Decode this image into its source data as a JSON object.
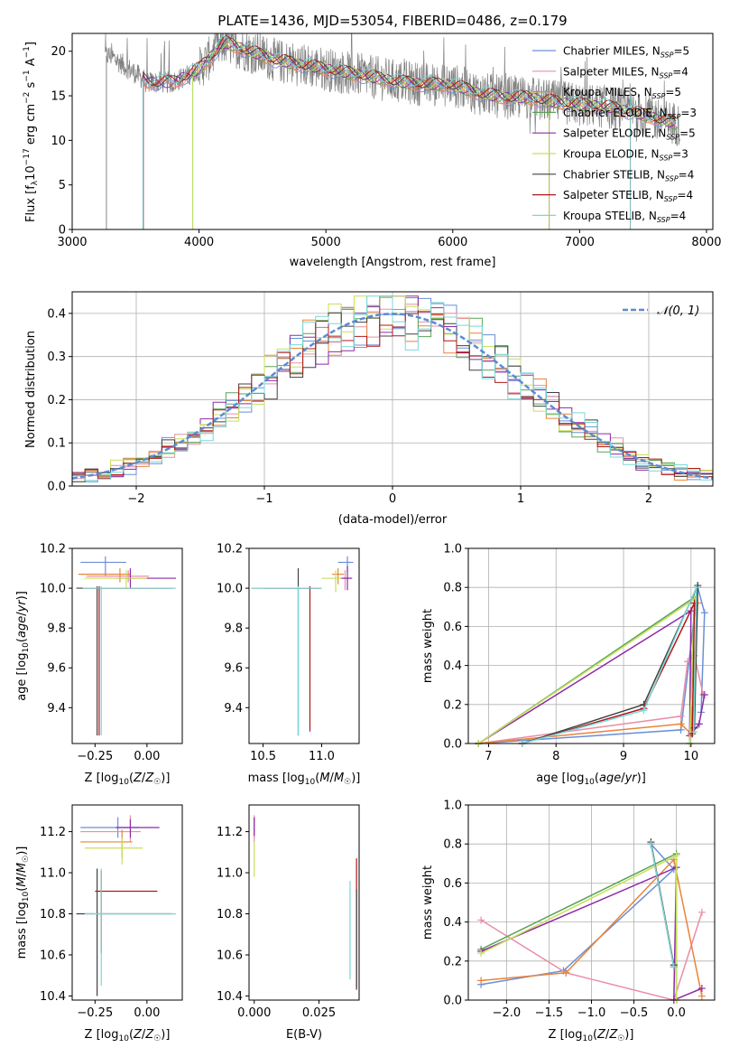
{
  "title": "PLATE=1436, MJD=53054, FIBERID=0486, z=0.179",
  "chart_data": [
    {
      "id": "spectrum",
      "type": "line",
      "xlabel": "wavelength [Angstrom, rest frame]",
      "ylabel": "Flux [f_λ10^-17 erg cm^-2 s^-1 A^-1]",
      "xlim": [
        3000,
        8050
      ],
      "ylim": [
        0,
        22
      ],
      "xticks": [
        "3000",
        "4000",
        "5000",
        "6000",
        "7000",
        "8000"
      ],
      "yticks": [
        "0",
        "5",
        "10",
        "15",
        "20"
      ],
      "legend": {
        "placement": "right",
        "entries": [
          {
            "label": "Chabrier MILES, N_SSP=5",
            "color": "#6a8fd6"
          },
          {
            "label": "Salpeter MILES, N_SSP=4",
            "color": "#e88fa8"
          },
          {
            "label": "Kroupa MILES, N_SSP=5",
            "color": "#e8843a"
          },
          {
            "label": "Chabrier ELODIE, N_SSP=3",
            "color": "#5aa35a"
          },
          {
            "label": "Salpeter ELODIE, N_SSP=5",
            "color": "#8e2aa8"
          },
          {
            "label": "Kroupa ELODIE, N_SSP=3",
            "color": "#c8e05a"
          },
          {
            "label": "Chabrier STELIB, N_SSP=4",
            "color": "#404040"
          },
          {
            "label": "Salpeter STELIB, N_SSP=4",
            "color": "#b01818"
          },
          {
            "label": "Kroupa STELIB, N_SSP=4",
            "color": "#78d8d8"
          }
        ]
      },
      "data_trend": {
        "x": [
          3300,
          3600,
          3800,
          4000,
          4200,
          4400,
          4600,
          4800,
          5000,
          5200,
          5400,
          5600,
          5800,
          6000,
          6200,
          6400,
          6600,
          6800,
          7000,
          7200,
          7400,
          7600,
          7780
        ],
        "y": [
          19.5,
          16.5,
          16.5,
          18,
          21,
          20,
          19,
          18.5,
          18,
          17.5,
          17,
          16.5,
          16.3,
          16.2,
          15.3,
          14.8,
          14.8,
          14.3,
          14,
          13.8,
          13.2,
          12.5,
          11.8
        ]
      }
    },
    {
      "id": "residuals",
      "type": "line",
      "xlabel": "(data-model)/error",
      "ylabel": "Normed distribution",
      "xlim": [
        -2.5,
        2.5
      ],
      "ylim": [
        0,
        0.45
      ],
      "xticks": [
        "−2",
        "−1",
        "0",
        "1",
        "2"
      ],
      "yticks": [
        "0.0",
        "0.1",
        "0.2",
        "0.3",
        "0.4"
      ],
      "legend": {
        "placement": "top-right",
        "label": "𝒩(0, 1)",
        "color": "#5b8bd6"
      }
    },
    {
      "id": "age-vs-Z",
      "type": "scatter",
      "xlabel": "Z [log₁₀(Z/Z☉)]",
      "ylabel": "age  [log₁₀(age/yr)]",
      "xlim": [
        -0.36,
        0.17
      ],
      "ylim": [
        9.22,
        10.2
      ],
      "xticks": [
        "−0.25",
        "0.00"
      ],
      "yticks": [
        "9.4",
        "9.6",
        "9.8",
        "10.0",
        "10.2"
      ],
      "points": [
        {
          "color": "#6a8fd6",
          "x": -0.2,
          "y": 10.13,
          "xerr": [
            0.12,
            0.1
          ],
          "yerr": [
            0.07,
            0.03
          ]
        },
        {
          "color": "#e88fa8",
          "x": -0.09,
          "y": 10.06,
          "xerr": [
            0.2,
            0.1
          ],
          "yerr": [
            0.03,
            0.03
          ]
        },
        {
          "color": "#e8843a",
          "x": -0.13,
          "y": 10.07,
          "xerr": [
            0.2,
            0.05
          ],
          "yerr": [
            0.04,
            0.03
          ]
        },
        {
          "color": "#8e2aa8",
          "x": -0.08,
          "y": 10.05,
          "xerr": [
            0.07,
            0.22
          ],
          "yerr": [
            0.05,
            0.05
          ]
        },
        {
          "color": "#c8e05a",
          "x": -0.1,
          "y": 10.05,
          "xerr": [
            0.2,
            0.1
          ],
          "yerr": [
            0.05,
            0.04
          ]
        },
        {
          "color": "#404040",
          "x": -0.24,
          "y": 10.0,
          "xerr": [
            0.1,
            0.36
          ],
          "yerr": [
            0.74,
            0.01
          ]
        },
        {
          "color": "#b01818",
          "x": -0.23,
          "y": 10.0,
          "xerr": [
            0.08,
            0.36
          ],
          "yerr": [
            0.74,
            0.01
          ]
        },
        {
          "color": "#78d8d8",
          "x": -0.22,
          "y": 10.0,
          "xerr": [
            0.09,
            0.36
          ],
          "yerr": [
            0.74,
            0.01
          ]
        }
      ]
    },
    {
      "id": "age-vs-mass",
      "type": "scatter",
      "xlabel": "mass [log₁₀(M/M☉)]",
      "xlim": [
        10.38,
        11.32
      ],
      "ylim": [
        9.22,
        10.2
      ],
      "xticks": [
        "10.5",
        "11.0"
      ],
      "yticks": [
        "9.4",
        "9.6",
        "9.8",
        "10.0",
        "10.2"
      ],
      "points": [
        {
          "color": "#6a8fd6",
          "x": 11.22,
          "y": 10.13,
          "xerr": [
            0.08,
            0.05
          ],
          "yerr": [
            0.05,
            0.03
          ]
        },
        {
          "color": "#e88fa8",
          "x": 11.2,
          "y": 10.05,
          "xerr": [
            0.05,
            0.05
          ],
          "yerr": [
            0.06,
            0.04
          ]
        },
        {
          "color": "#e8843a",
          "x": 11.14,
          "y": 10.07,
          "xerr": [
            0.05,
            0.05
          ],
          "yerr": [
            0.05,
            0.03
          ]
        },
        {
          "color": "#8e2aa8",
          "x": 11.22,
          "y": 10.05,
          "xerr": [
            0.05,
            0.04
          ],
          "yerr": [
            0.06,
            0.06
          ]
        },
        {
          "color": "#c8e05a",
          "x": 11.12,
          "y": 10.05,
          "xerr": [
            0.12,
            0.05
          ],
          "yerr": [
            0.07,
            0.04
          ]
        },
        {
          "color": "#404040",
          "x": 10.8,
          "y": 10.0,
          "xerr": [
            0.4,
            0.2
          ],
          "yerr": [
            0.74,
            0.1
          ]
        },
        {
          "color": "#b01818",
          "x": 10.9,
          "y": 10.0,
          "xerr": [
            0.4,
            0.1
          ],
          "yerr": [
            0.72,
            0.01
          ]
        },
        {
          "color": "#78d8d8",
          "x": 10.8,
          "y": 10.0,
          "xerr": [
            0.4,
            0.2
          ],
          "yerr": [
            0.74,
            0.01
          ]
        }
      ]
    },
    {
      "id": "mass-weight-vs-age",
      "type": "line",
      "xlabel": "age  [log₁₀(age/yr)]",
      "ylabel": "mass weight",
      "xlim": [
        6.7,
        10.35
      ],
      "ylim": [
        0,
        1.0
      ],
      "xticks": [
        "7",
        "8",
        "9",
        "10"
      ],
      "yticks": [
        "0.0",
        "0.2",
        "0.4",
        "0.6",
        "0.8",
        "1.0"
      ],
      "series": [
        {
          "color": "#6a8fd6",
          "x": [
            6.85,
            9.85,
            10.1,
            10.2,
            10.15
          ],
          "y": [
            0,
            0.07,
            0.8,
            0.67,
            0.16
          ]
        },
        {
          "color": "#e88fa8",
          "x": [
            6.85,
            9.85,
            9.95,
            10.05,
            10.18
          ],
          "y": [
            0,
            0.14,
            0.42,
            0.45,
            0.25
          ]
        },
        {
          "color": "#e8843a",
          "x": [
            6.85,
            9.85,
            10.0,
            10.1
          ],
          "y": [
            0,
            0.1,
            0.05,
            0.72
          ]
        },
        {
          "color": "#5aa35a",
          "x": [
            6.85,
            10.05,
            9.98
          ],
          "y": [
            0,
            0.75,
            0
          ]
        },
        {
          "color": "#8e2aa8",
          "x": [
            6.85,
            10.0,
            9.98,
            10.12,
            10.2
          ],
          "y": [
            0,
            0.68,
            0.04,
            0.1,
            0.25
          ]
        },
        {
          "color": "#c8e05a",
          "x": [
            6.85,
            10.05,
            9.98
          ],
          "y": [
            0,
            0.74,
            0
          ]
        },
        {
          "color": "#404040",
          "x": [
            7.5,
            9.3,
            10.1,
            10.05
          ],
          "y": [
            0,
            0.2,
            0.81,
            0.08
          ]
        },
        {
          "color": "#b01818",
          "x": [
            7.5,
            9.3,
            10.05,
            10.02
          ],
          "y": [
            0,
            0.18,
            0.72,
            0.05
          ]
        },
        {
          "color": "#78d8d8",
          "x": [
            7.5,
            9.3,
            10.08,
            10.04
          ],
          "y": [
            0,
            0.17,
            0.8,
            0.06
          ]
        }
      ]
    },
    {
      "id": "mass-vs-Z",
      "type": "scatter",
      "xlabel": "Z [log₁₀(Z/Z☉)]",
      "ylabel": "mass [log₁₀(M/M☉)]",
      "xlim": [
        -0.36,
        0.17
      ],
      "ylim": [
        10.38,
        11.33
      ],
      "xticks": [
        "−0.25",
        "0.00"
      ],
      "yticks": [
        "10.4",
        "10.6",
        "10.8",
        "11.0",
        "11.2"
      ],
      "points": [
        {
          "color": "#6a8fd6",
          "x": -0.14,
          "y": 11.22,
          "xerr": [
            0.18,
            0.1
          ],
          "yerr": [
            0.05,
            0.05
          ]
        },
        {
          "color": "#e88fa8",
          "x": -0.08,
          "y": 11.2,
          "xerr": [
            0.24,
            0.05
          ],
          "yerr": [
            0.05,
            0.08
          ]
        },
        {
          "color": "#e8843a",
          "x": -0.12,
          "y": 11.15,
          "xerr": [
            0.2,
            0.05
          ],
          "yerr": [
            0.08,
            0.06
          ]
        },
        {
          "color": "#8e2aa8",
          "x": -0.08,
          "y": 11.22,
          "xerr": [
            0.07,
            0.14
          ],
          "yerr": [
            0.05,
            0.04
          ]
        },
        {
          "color": "#c8e05a",
          "x": -0.12,
          "y": 11.12,
          "xerr": [
            0.18,
            0.1
          ],
          "yerr": [
            0.08,
            0.05
          ]
        },
        {
          "color": "#404040",
          "x": -0.24,
          "y": 10.8,
          "xerr": [
            0.1,
            0.36
          ],
          "yerr": [
            0.4,
            0.22
          ]
        },
        {
          "color": "#b01818",
          "x": -0.22,
          "y": 10.91,
          "xerr": [
            0.03,
            0.27
          ],
          "yerr": [
            0.3,
            0.1
          ]
        },
        {
          "color": "#78d8d8",
          "x": -0.22,
          "y": 10.8,
          "xerr": [
            0.08,
            0.36
          ],
          "yerr": [
            0.35,
            0.22
          ]
        }
      ]
    },
    {
      "id": "mass-vs-ebv",
      "type": "scatter",
      "xlabel": "E(B-V)",
      "xlim": [
        -0.002,
        0.0405
      ],
      "ylim": [
        10.38,
        11.33
      ],
      "xticks": [
        "0.000",
        "0.025"
      ],
      "yticks": [
        "10.4",
        "10.6",
        "10.8",
        "11.0",
        "11.2"
      ],
      "points": [
        {
          "color": "#6a8fd6",
          "x": 0.0,
          "y": 11.22,
          "yerr": [
            0.05,
            0.05
          ]
        },
        {
          "color": "#e88fa8",
          "x": 0.0,
          "y": 11.2,
          "yerr": [
            0.05,
            0.08
          ]
        },
        {
          "color": "#8e2aa8",
          "x": 0.0,
          "y": 11.22,
          "yerr": [
            0.04,
            0.05
          ]
        },
        {
          "color": "#c8e05a",
          "x": 0.0,
          "y": 11.1,
          "yerr": [
            0.12,
            0.05
          ]
        },
        {
          "color": "#78d8d8",
          "x": 0.037,
          "y": 10.7,
          "yerr": [
            0.22,
            0.26
          ]
        },
        {
          "color": "#b01818",
          "x": 0.0395,
          "y": 10.75,
          "yerr": [
            0.31,
            0.32
          ]
        },
        {
          "color": "#404040",
          "x": 0.0395,
          "y": 10.6,
          "yerr": [
            0.17,
            0.32
          ]
        }
      ]
    },
    {
      "id": "mass-weight-vs-Z",
      "type": "line",
      "xlabel": "Z [log₁₀(Z/Z☉)]",
      "ylabel": "mass weight",
      "xlim": [
        -2.45,
        0.45
      ],
      "ylim": [
        0,
        1.0
      ],
      "xticks": [
        "−2.0",
        "−1.5",
        "−1.0",
        "−0.5",
        "0.0"
      ],
      "yticks": [
        "0.0",
        "0.2",
        "0.4",
        "0.6",
        "0.8",
        "1.0"
      ],
      "series": [
        {
          "color": "#6a8fd6",
          "x": [
            -2.3,
            -1.33,
            -0.03,
            -0.3
          ],
          "y": [
            0.08,
            0.15,
            0.67,
            0.8
          ]
        },
        {
          "color": "#e88fa8",
          "x": [
            -2.3,
            -1.3,
            -0.03,
            0.3
          ],
          "y": [
            0.41,
            0.14,
            0,
            0.45
          ]
        },
        {
          "color": "#e8843a",
          "x": [
            -2.3,
            -1.3,
            -0.03,
            0.3
          ],
          "y": [
            0.1,
            0.14,
            0.72,
            0.02
          ]
        },
        {
          "color": "#5aa35a",
          "x": [
            -2.3,
            0.0,
            0.0
          ],
          "y": [
            0.26,
            0.75,
            0
          ]
        },
        {
          "color": "#8e2aa8",
          "x": [
            -2.3,
            0.0,
            -0.03,
            0.3
          ],
          "y": [
            0.25,
            0.68,
            0,
            0.06
          ]
        },
        {
          "color": "#c8e05a",
          "x": [
            -2.3,
            0.0,
            0.0
          ],
          "y": [
            0.24,
            0.74,
            0
          ]
        },
        {
          "color": "#404040",
          "x": [
            -0.3,
            -0.03
          ],
          "y": [
            0.81,
            0.18
          ]
        },
        {
          "color": "#b01818",
          "x": [
            -0.3,
            -0.03
          ],
          "y": [
            0.8,
            0.17
          ]
        },
        {
          "color": "#78d8d8",
          "x": [
            -0.3,
            -0.03
          ],
          "y": [
            0.8,
            0.17
          ]
        }
      ]
    }
  ]
}
